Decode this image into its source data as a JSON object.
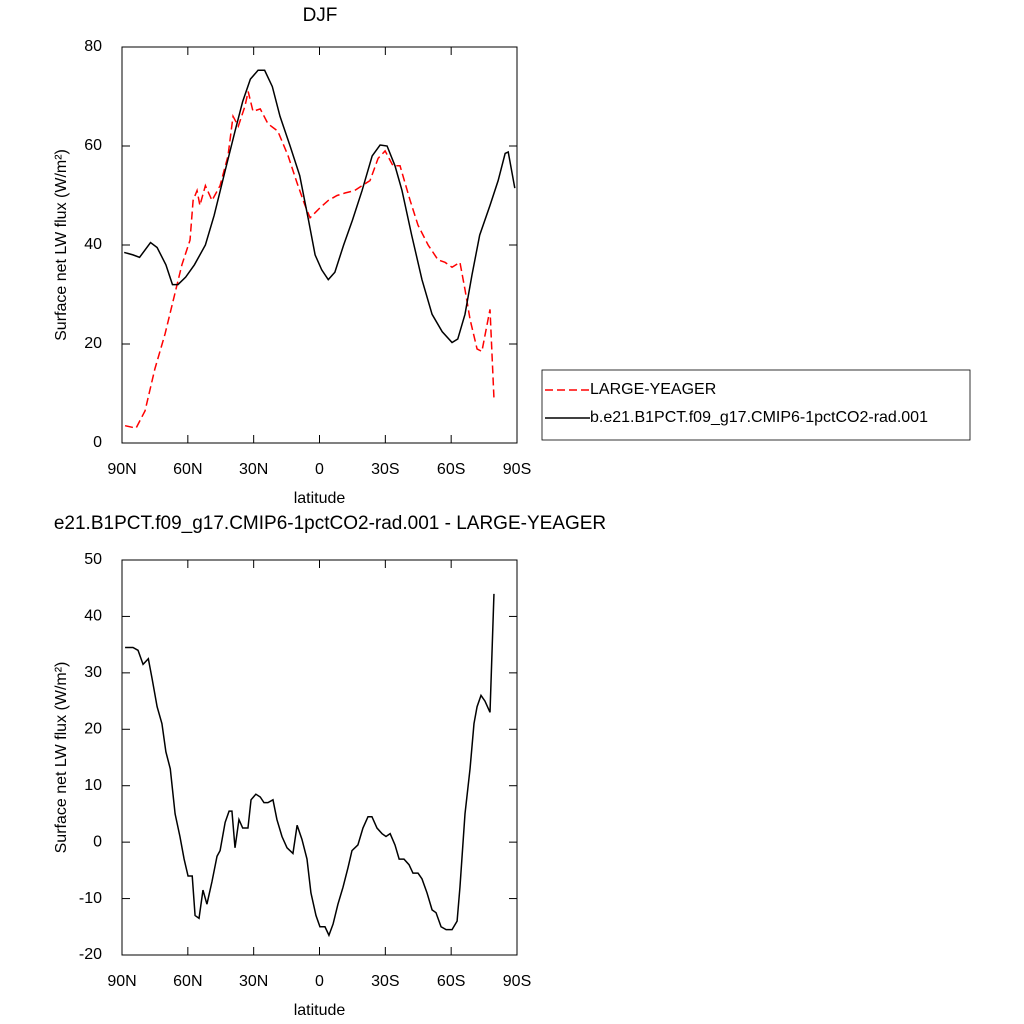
{
  "chart_data": [
    {
      "type": "line",
      "title": "DJF",
      "x_label": "latitude",
      "y_label": "Surface net LW flux (W/m²)",
      "xlim": [
        90,
        -90
      ],
      "xticks": [
        {
          "value": 90,
          "label": "90N"
        },
        {
          "value": 60,
          "label": "60N"
        },
        {
          "value": 30,
          "label": "30N"
        },
        0,
        {
          "value": -30,
          "label": "30S"
        },
        {
          "value": -60,
          "label": "60S"
        },
        {
          "value": -90,
          "label": "90S"
        }
      ],
      "ylim": [
        0,
        80
      ],
      "yticks": [
        0,
        20,
        40,
        60,
        80
      ],
      "legend": "right",
      "series": [
        {
          "name": "LARGE-YEAGER",
          "color": "#ff0000",
          "dashed": true,
          "x": [
            88.6,
            83.6,
            79.5,
            75,
            70.4,
            66,
            62.7,
            59,
            57.6,
            55.8,
            54.5,
            52,
            49,
            45.3,
            41.7,
            39.4,
            37,
            34,
            32.5,
            30.3,
            27,
            23.5,
            19,
            14.3,
            10.2,
            6.6,
            4.3,
            -0.2,
            -4,
            -8,
            -11.6,
            -16,
            -19.4,
            -23,
            -26.7,
            -29.9,
            -33.5,
            -36.7,
            -41.3,
            -44.9,
            -49.5,
            -54,
            -57.2,
            -60.4,
            -64,
            -66.3,
            -68.6,
            -71.8,
            -74,
            -77.7,
            -79.5
          ],
          "values": [
            3.5,
            3,
            6.5,
            15,
            22,
            30,
            36,
            41,
            49,
            51,
            48,
            52,
            49,
            52,
            58,
            66,
            64,
            68,
            71,
            67,
            67.5,
            64.5,
            63,
            58,
            52.5,
            48,
            45.5,
            47.5,
            49,
            50,
            50.5,
            51,
            52,
            53,
            57.5,
            59,
            56,
            56,
            49,
            44,
            40,
            37,
            36.5,
            35.5,
            36.5,
            31,
            25,
            19,
            18.5,
            27,
            9
          ]
        },
        {
          "name": "b.e21.B1PCT.f09_g17.CMIP6-1pctCO2-rad.001",
          "color": "#000000",
          "dashed": false,
          "x": [
            89,
            85,
            82,
            77,
            74,
            70,
            67,
            64.5,
            61,
            57,
            52,
            48,
            43,
            38.5,
            35,
            31.5,
            28,
            25,
            21.5,
            18,
            13.4,
            9,
            5,
            2,
            -1,
            -4,
            -7,
            -11,
            -15,
            -19.4,
            -24,
            -27.6,
            -30.8,
            -34.4,
            -37.6,
            -42,
            -46.7,
            -51.3,
            -55.9,
            -60.4,
            -63,
            -66.3,
            -69.5,
            -73,
            -77.7,
            -81.4,
            -84.6,
            -86,
            -89
          ],
          "values": [
            38.5,
            38,
            37.5,
            40.5,
            39.5,
            36,
            32,
            32,
            33.5,
            36,
            40,
            46,
            55,
            63,
            69,
            73.5,
            75.3,
            75.3,
            72,
            66,
            60,
            54,
            45,
            38,
            35,
            33,
            34.5,
            40,
            45,
            51,
            58,
            60.2,
            60,
            56,
            51,
            42,
            33,
            26,
            22.5,
            20.3,
            21,
            26,
            34,
            42,
            48,
            53,
            58.5,
            58.8,
            51.5
          ]
        }
      ]
    },
    {
      "type": "line",
      "title": "e21.B1PCT.f09_g17.CMIP6-1pctCO2-rad.001 - LARGE-YEAGER",
      "x_label": "latitude",
      "y_label": "Surface net LW flux (W/m²)",
      "xlim": [
        90,
        -90
      ],
      "xticks": [
        {
          "value": 90,
          "label": "90N"
        },
        {
          "value": 60,
          "label": "60N"
        },
        {
          "value": 30,
          "label": "30N"
        },
        0,
        {
          "value": -30,
          "label": "30S"
        },
        {
          "value": -60,
          "label": "60S"
        },
        {
          "value": -90,
          "label": "90S"
        }
      ],
      "ylim": [
        -20,
        50
      ],
      "yticks": [
        -20,
        -10,
        0,
        10,
        20,
        30,
        40,
        50
      ],
      "series": [
        {
          "color": "#000000",
          "dashed": false,
          "x": [
            88.6,
            85,
            82.7,
            80.4,
            78,
            76.3,
            74,
            71.8,
            70,
            68,
            65.8,
            63.6,
            61.7,
            59.9,
            58,
            56.7,
            54.9,
            53.1,
            51.3,
            49,
            46.7,
            45.3,
            43,
            41.2,
            39.9,
            38.5,
            36.7,
            35,
            32.6,
            31.2,
            29,
            27,
            25.3,
            23.5,
            21.2,
            19.4,
            17.1,
            14.8,
            12.1,
            10.2,
            8,
            5.7,
            3.9,
            1.6,
            -0.2,
            -2.5,
            -4.3,
            -6.2,
            -8.4,
            -10.7,
            -13,
            -14.8,
            -17.5,
            -19.8,
            -22.1,
            -23.9,
            -26.2,
            -28.5,
            -30.3,
            -32.2,
            -34.4,
            -36.3,
            -38.5,
            -40.8,
            -42.6,
            -44.9,
            -46.7,
            -49,
            -51.3,
            -53.1,
            -55.4,
            -57.7,
            -60.4,
            -62.7,
            -64,
            -66.3,
            -68.6,
            -70.4,
            -71.8,
            -73.6,
            -75.4,
            -77.7,
            -79.5
          ],
          "values": [
            34.5,
            34.5,
            34,
            31.5,
            32.5,
            29,
            24,
            21,
            16,
            13,
            5,
            1,
            -3,
            -6,
            -6,
            -13,
            -13.5,
            -8.5,
            -11,
            -7,
            -2.5,
            -1.5,
            3.5,
            5.5,
            5.5,
            -1,
            4,
            2.5,
            2.5,
            7.5,
            8.5,
            8,
            7,
            7,
            7.5,
            4,
            1,
            -1,
            -2,
            3,
            0.5,
            -3,
            -9,
            -13,
            -15,
            -15,
            -16.5,
            -14.5,
            -11,
            -8,
            -4.5,
            -1.5,
            -0.5,
            2.5,
            4.5,
            4.5,
            2.5,
            1.5,
            1,
            1.5,
            -0.5,
            -3,
            -3,
            -4,
            -5.5,
            -5.5,
            -6.5,
            -9,
            -12,
            -12.5,
            -15,
            -15.5,
            -15.5,
            -14,
            -8,
            5,
            13,
            21,
            24,
            26,
            25,
            23,
            44
          ]
        }
      ]
    }
  ]
}
